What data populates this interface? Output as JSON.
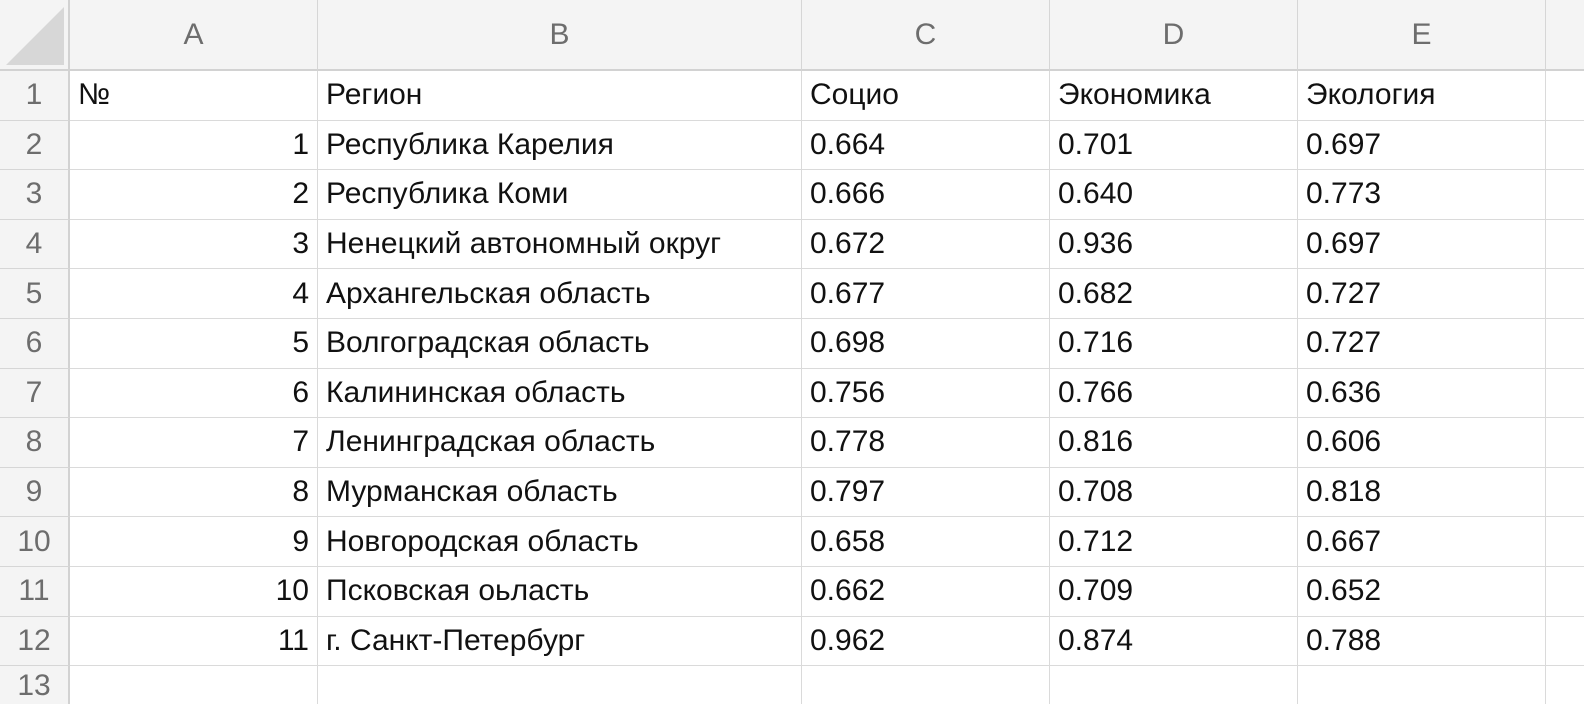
{
  "spreadsheet": {
    "column_headers": [
      "A",
      "B",
      "C",
      "D",
      "E"
    ],
    "row_numbers": [
      "1",
      "2",
      "3",
      "4",
      "5",
      "6",
      "7",
      "8",
      "9",
      "10",
      "11",
      "12",
      "13"
    ],
    "header_row": [
      "№",
      "Регион",
      "Социо",
      "Экономика",
      "Экология"
    ],
    "rows": [
      [
        "1",
        "Республика Карелия",
        "0.664",
        "0.701",
        "0.697"
      ],
      [
        "2",
        "Республика Коми",
        "0.666",
        "0.640",
        "0.773"
      ],
      [
        "3",
        "Ненецкий автономный округ",
        "0.672",
        "0.936",
        "0.697"
      ],
      [
        "4",
        "Архангельская область",
        "0.677",
        "0.682",
        "0.727"
      ],
      [
        "5",
        "Волгоградская область",
        "0.698",
        "0.716",
        "0.727"
      ],
      [
        "6",
        "Калининская область",
        "0.756",
        "0.766",
        "0.636"
      ],
      [
        "7",
        "Ленинградская область",
        "0.778",
        "0.816",
        "0.606"
      ],
      [
        "8",
        "Мурманская область",
        "0.797",
        "0.708",
        "0.818"
      ],
      [
        "9",
        "Новгородская область",
        "0.658",
        "0.712",
        "0.667"
      ],
      [
        "10",
        "Псковская оьласть",
        "0.662",
        "0.709",
        "0.652"
      ],
      [
        "11",
        "г. Санкт-Петербург",
        "0.962",
        "0.874",
        "0.788"
      ]
    ]
  }
}
